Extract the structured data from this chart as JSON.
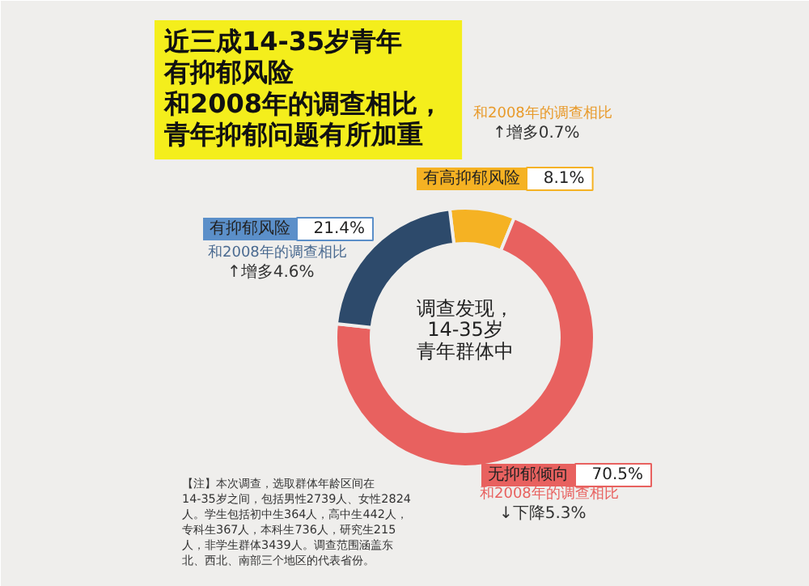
{
  "chart_data": {
    "type": "donut",
    "title": "近三成14-35岁青年有抑郁风险",
    "subtitle": "和2008年的调查相比，青年抑郁问题有所加重",
    "categories": [
      "有高抑郁风险",
      "无抑郁倾向",
      "有抑郁风险"
    ],
    "values": [
      8.1,
      70.5,
      21.4
    ],
    "colors": [
      "#f5b223",
      "#e8615f",
      "#2d4a6b"
    ],
    "value_labels": [
      "8.1%",
      "70.5%",
      "21.4%"
    ],
    "annotations": [
      "调查发现，14-35岁青年群体中",
      "和2008年的调查相比",
      "↑增多0.7%",
      "和2008年的调查相比",
      "↓下降5.3%",
      "和2008年的调查相比",
      "↑增多4.6%",
      "【注】本次调查，选取群体年龄区间在",
      "14-35岁之间，包括男性2739人、女性2824",
      "人。学生包括初中生364人，高中生442人，",
      "专科生367人，本科生736人，研究生215",
      "人，非学生群体3439人。调查范围涵盖东",
      "北、西北、南部三个地区的代表省份。"
    ]
  }
}
